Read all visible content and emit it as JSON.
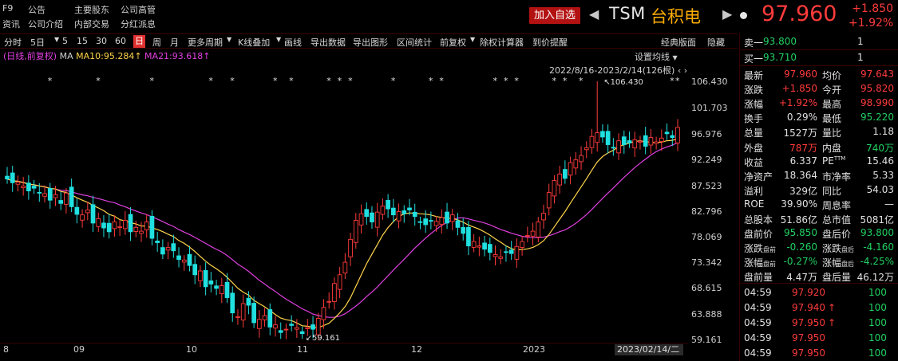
{
  "nav": {
    "f9": "F9",
    "announcement": "公告",
    "shareholders": "主要股东",
    "executives": "公司高管",
    "news": "资讯",
    "profile": "公司介绍",
    "insider": "内部交易",
    "dividend": "分红派息"
  },
  "header": {
    "add_fav": "加入自选",
    "ticker": "TSM",
    "name": "台积电",
    "price": "97.960",
    "change": "+1.850",
    "change_pct": "+1.92%"
  },
  "toolbar": {
    "items": [
      "分时",
      "5日",
      "5",
      "15",
      "30",
      "60",
      "日",
      "周",
      "月",
      "更多周期",
      "K线叠加",
      "画线",
      "导出数据",
      "导出图形",
      "区间统计",
      "前复权",
      "除权计算器",
      "到价提醒",
      "经典版面",
      "隐藏"
    ]
  },
  "chart_labels": {
    "legend_prefix": "(日线,前复权)",
    "ma_label": "MA",
    "ma10": "MA10:95.284↑",
    "ma21": "MA21:93.618↑",
    "set_ma": "设置均线",
    "range": "2022/8/16-2023/2/14(126根)",
    "high_mark": "106.430",
    "low_mark": "59.161",
    "date_box": "2023/02/14/二"
  },
  "chart_data": {
    "type": "candlestick",
    "x_range": [
      "2022-08-16",
      "2023-02-14"
    ],
    "bars": 126,
    "y_ticks": [
      106.43,
      101.703,
      96.976,
      92.249,
      87.523,
      82.796,
      78.069,
      73.342,
      68.615,
      63.888,
      59.161
    ],
    "x_ticks": [
      "8",
      "09",
      "10",
      "11",
      "12",
      "2023"
    ],
    "high": 106.43,
    "low": 59.161,
    "last_close": 97.96,
    "series": [
      {
        "name": "MA10",
        "last": 95.284,
        "color": "#ffd54a"
      },
      {
        "name": "MA21",
        "last": 93.618,
        "color": "#e040e0"
      }
    ],
    "up_color": "#ff3b3b",
    "down_color": "#20e0e0"
  },
  "quote": {
    "sell1_label": "卖一",
    "sell1_price": "93.800",
    "sell1_vol": "1",
    "buy1_label": "买一",
    "buy1_price": "93.710",
    "buy1_vol": "1",
    "rows": [
      {
        "l1": "最新",
        "v1": "97.960",
        "c1": "red",
        "l2": "均价",
        "v2": "97.643",
        "c2": "red"
      },
      {
        "l1": "涨跌",
        "v1": "+1.850",
        "c1": "red",
        "l2": "今开",
        "v2": "95.820",
        "c2": "red"
      },
      {
        "l1": "涨幅",
        "v1": "+1.92%",
        "c1": "red",
        "l2": "最高",
        "v2": "98.990",
        "c2": "red"
      },
      {
        "l1": "换手",
        "v1": "0.29%",
        "c1": "white",
        "l2": "最低",
        "v2": "95.220",
        "c2": "green"
      },
      {
        "l1": "总量",
        "v1": "1527万",
        "c1": "white",
        "l2": "量比",
        "v2": "1.18",
        "c2": "white"
      },
      {
        "l1": "外盘",
        "v1": "787万",
        "c1": "red",
        "l2": "内盘",
        "v2": "740万",
        "c2": "green"
      },
      {
        "l1": "收益",
        "v1": "6.337",
        "c1": "white",
        "l2": "PE",
        "v2": "15.46",
        "c2": "white"
      },
      {
        "l1": "净资产",
        "v1": "18.364",
        "c1": "white",
        "l2": "市净率",
        "v2": "5.33",
        "c2": "white"
      },
      {
        "l1": "溢利",
        "v1": "329亿",
        "c1": "white",
        "l2": "同比",
        "v2": "54.03",
        "c2": "white"
      },
      {
        "l1": "ROE",
        "v1": "39.90%",
        "c1": "white",
        "l2": "周息率",
        "v2": "—",
        "c2": "white"
      },
      {
        "l1": "总股本",
        "v1": "51.86亿",
        "c1": "white",
        "l2": "总市值",
        "v2": "5081亿",
        "c2": "white"
      },
      {
        "l1": "盘前价",
        "v1": "95.850",
        "c1": "green",
        "l2": "盘后价",
        "v2": "93.800",
        "c2": "green"
      },
      {
        "l1": "涨跌",
        "l1sub": "盘前",
        "v1": "-0.260",
        "c1": "green",
        "l2": "涨跌",
        "l2sub": "盘后",
        "v2": "-4.160",
        "c2": "green"
      },
      {
        "l1": "涨幅",
        "l1sub": "盘前",
        "v1": "-0.27%",
        "c1": "green",
        "l2": "涨幅",
        "l2sub": "盘后",
        "v2": "-4.25%",
        "c2": "green"
      },
      {
        "l1": "盘前量",
        "v1": "4.47万",
        "c1": "white",
        "l2": "盘后量",
        "v2": "46.12万",
        "c2": "white"
      }
    ],
    "pe_sup": "TTM"
  },
  "ticks": [
    {
      "time": "04:59",
      "price": "97.920",
      "arrow": "",
      "vol": "100"
    },
    {
      "time": "04:59",
      "price": "97.940",
      "arrow": "↑",
      "vol": "100"
    },
    {
      "time": "04:59",
      "price": "97.950",
      "arrow": "↑",
      "vol": "100"
    },
    {
      "time": "04:59",
      "price": "97.950",
      "arrow": "",
      "vol": "100"
    },
    {
      "time": "04:59",
      "price": "97.950",
      "arrow": "",
      "vol": "100"
    }
  ]
}
